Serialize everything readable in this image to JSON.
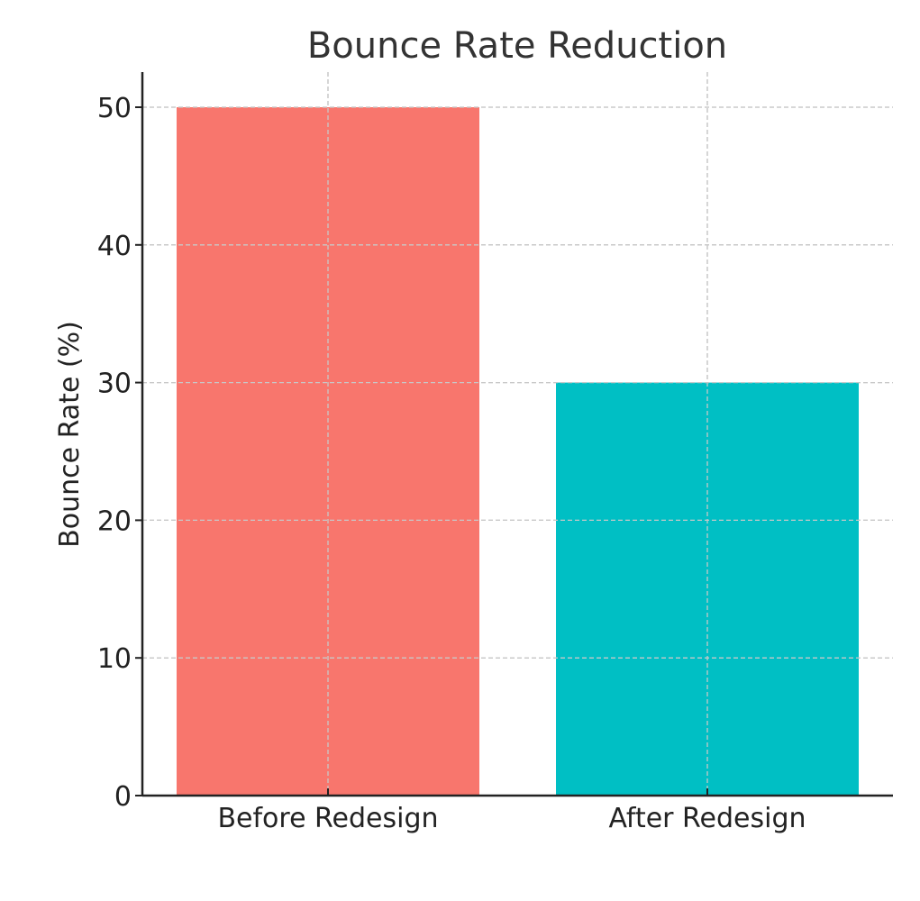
{
  "chart_data": {
    "type": "bar",
    "title": "Bounce Rate Reduction",
    "xlabel": "",
    "ylabel": "Bounce Rate (%)",
    "categories": [
      "Before Redesign",
      "After Redesign"
    ],
    "values": [
      50,
      30
    ],
    "colors": [
      "#f8766d",
      "#00bfc4"
    ],
    "ylim": [
      0,
      52.5
    ],
    "yticks": [
      0,
      10,
      20,
      30,
      40,
      50
    ],
    "grid": true,
    "legend": "none"
  },
  "style": {
    "grid_color": "#c8c8c8",
    "axis_color": "#222222",
    "text_color": "#222222",
    "title_color": "#333333"
  }
}
